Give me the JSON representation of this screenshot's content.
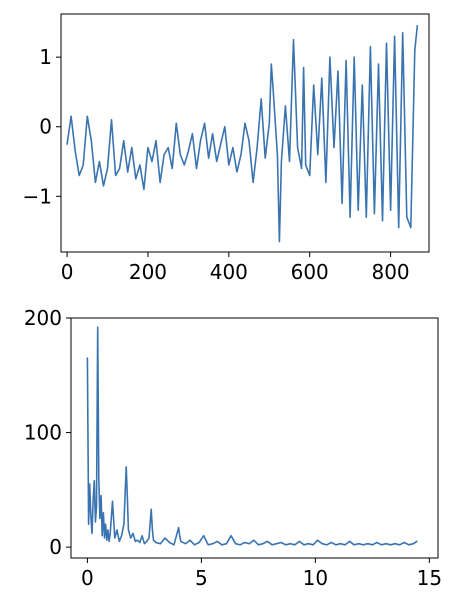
{
  "chart_data": [
    {
      "type": "line",
      "xlim": [
        -15,
        895
      ],
      "ylim": [
        -1.8,
        1.62
      ],
      "xticks": [
        0,
        200,
        400,
        600,
        800
      ],
      "xtick_labels": [
        "0",
        "200",
        "400",
        "600",
        "800"
      ],
      "yticks": [
        -1,
        0,
        1
      ],
      "ytick_labels": [
        "−1",
        "0",
        "1"
      ],
      "grid": false,
      "series": [
        {
          "color": "#3a74b0",
          "x": [
            0,
            10,
            20,
            30,
            40,
            50,
            60,
            70,
            80,
            90,
            100,
            110,
            120,
            130,
            140,
            150,
            160,
            170,
            180,
            190,
            200,
            210,
            220,
            230,
            240,
            250,
            260,
            270,
            280,
            290,
            300,
            310,
            320,
            330,
            340,
            350,
            360,
            370,
            380,
            390,
            400,
            410,
            420,
            430,
            440,
            450,
            460,
            470,
            480,
            490,
            500,
            505,
            510,
            520,
            525,
            530,
            540,
            550,
            560,
            570,
            580,
            585,
            590,
            600,
            610,
            620,
            630,
            640,
            650,
            660,
            670,
            680,
            690,
            700,
            710,
            720,
            730,
            740,
            750,
            760,
            770,
            780,
            790,
            800,
            810,
            820,
            830,
            840,
            850,
            860,
            866
          ],
          "y": [
            -0.25,
            0.15,
            -0.35,
            -0.7,
            -0.55,
            0.15,
            -0.2,
            -0.8,
            -0.5,
            -0.85,
            -0.6,
            0.1,
            -0.7,
            -0.6,
            -0.2,
            -0.65,
            -0.3,
            -0.75,
            -0.55,
            -0.9,
            -0.3,
            -0.5,
            -0.2,
            -0.8,
            -0.4,
            -0.3,
            -0.6,
            0.05,
            -0.4,
            -0.55,
            -0.35,
            -0.1,
            -0.6,
            -0.2,
            0.05,
            -0.45,
            -0.1,
            -0.5,
            -0.25,
            0.0,
            -0.55,
            -0.3,
            -0.65,
            -0.4,
            0.05,
            -0.2,
            -0.8,
            -0.3,
            0.4,
            -0.45,
            0.05,
            0.9,
            0.5,
            -0.4,
            -1.65,
            -0.5,
            0.3,
            -0.5,
            1.25,
            -0.3,
            -0.6,
            0.85,
            -0.55,
            -0.7,
            0.6,
            -0.4,
            0.7,
            -0.8,
            1.0,
            -0.3,
            0.8,
            -1.1,
            0.95,
            -1.3,
            1.0,
            -1.2,
            0.6,
            -1.3,
            1.15,
            -1.25,
            0.9,
            -1.35,
            1.2,
            -1.2,
            1.3,
            -1.45,
            1.35,
            -1.3,
            -1.45,
            1.1,
            1.45
          ]
        }
      ]
    },
    {
      "type": "line",
      "xlim": [
        -0.72,
        15.38
      ],
      "ylim": [
        -9.5,
        200
      ],
      "xticks": [
        0,
        5,
        10,
        15
      ],
      "xtick_labels": [
        "0",
        "5",
        "10",
        "15"
      ],
      "yticks": [
        0,
        100,
        200
      ],
      "ytick_labels": [
        "0",
        "100",
        "200"
      ],
      "grid": false,
      "series": [
        {
          "color": "#3a74b0",
          "x": [
            0.0,
            0.05,
            0.1,
            0.15,
            0.2,
            0.25,
            0.3,
            0.35,
            0.4,
            0.45,
            0.5,
            0.55,
            0.6,
            0.65,
            0.7,
            0.75,
            0.8,
            0.85,
            0.9,
            0.95,
            1.0,
            1.1,
            1.2,
            1.3,
            1.4,
            1.5,
            1.6,
            1.7,
            1.75,
            1.8,
            1.9,
            2.0,
            2.1,
            2.2,
            2.3,
            2.4,
            2.5,
            2.6,
            2.7,
            2.8,
            2.85,
            2.9,
            3.0,
            3.2,
            3.4,
            3.6,
            3.8,
            4.0,
            4.05,
            4.1,
            4.3,
            4.5,
            4.7,
            4.9,
            5.1,
            5.3,
            5.5,
            5.7,
            5.9,
            6.1,
            6.3,
            6.5,
            6.7,
            6.9,
            7.1,
            7.3,
            7.5,
            7.7,
            7.9,
            8.1,
            8.3,
            8.5,
            8.7,
            8.9,
            9.1,
            9.3,
            9.5,
            9.7,
            9.9,
            10.1,
            10.3,
            10.5,
            10.7,
            10.9,
            11.1,
            11.3,
            11.5,
            11.7,
            11.9,
            12.1,
            12.3,
            12.5,
            12.7,
            12.9,
            13.1,
            13.3,
            13.5,
            13.7,
            13.9,
            14.1,
            14.3,
            14.45
          ],
          "y": [
            165,
            20,
            55,
            28,
            12,
            40,
            58,
            22,
            35,
            192,
            60,
            25,
            45,
            10,
            30,
            8,
            20,
            6,
            15,
            5,
            12,
            40,
            8,
            15,
            5,
            10,
            20,
            70,
            45,
            15,
            8,
            12,
            5,
            6,
            4,
            10,
            3,
            5,
            8,
            33,
            15,
            6,
            4,
            3,
            8,
            4,
            2,
            17,
            10,
            5,
            3,
            6,
            2,
            4,
            10,
            2,
            3,
            5,
            2,
            3,
            10,
            3,
            2,
            4,
            3,
            6,
            2,
            3,
            5,
            2,
            3,
            4,
            2,
            3,
            2,
            5,
            2,
            3,
            2,
            6,
            3,
            2,
            4,
            2,
            3,
            2,
            5,
            2,
            3,
            2,
            3,
            2,
            4,
            2,
            3,
            2,
            3,
            2,
            4,
            2,
            3,
            5
          ]
        }
      ]
    }
  ]
}
